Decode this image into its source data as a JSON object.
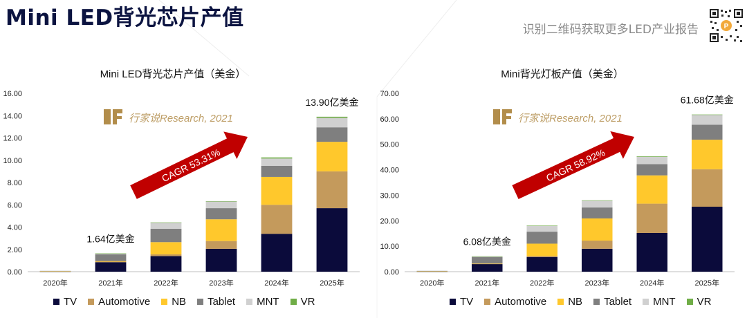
{
  "page": {
    "title": "Mini LED背光芯片产值",
    "subtitle": "识别二维码获取更多LED产业报告",
    "watermark": "行家说Research, 2021"
  },
  "colors": {
    "TV": "#0b0b3b",
    "Automotive": "#c49a5c",
    "NB": "#ffc82c",
    "Tablet": "#7f7f7f",
    "MNT": "#d0d0d0",
    "VR": "#70ad47",
    "arrow": "#c00000",
    "title": "#0b1340"
  },
  "chart_data": [
    {
      "type": "bar",
      "stacked": true,
      "title": "Mini LED背光芯片产值（美金）",
      "categories": [
        "2020年",
        "2021年",
        "2022年",
        "2023年",
        "2024年",
        "2025年"
      ],
      "ylim": [
        0,
        16
      ],
      "yticks": [
        "0.00",
        "2.00",
        "4.00",
        "6.00",
        "8.00",
        "10.00",
        "12.00",
        "14.00",
        "16.00"
      ],
      "grid": false,
      "legend_position": "bottom",
      "series": [
        {
          "name": "TV",
          "values": [
            0.02,
            0.85,
            1.4,
            2.05,
            3.4,
            5.7
          ]
        },
        {
          "name": "Automotive",
          "values": [
            0.0,
            0.05,
            0.15,
            0.7,
            2.6,
            3.3
          ]
        },
        {
          "name": "NB",
          "values": [
            0.02,
            0.05,
            1.1,
            1.95,
            2.5,
            2.65
          ]
        },
        {
          "name": "Tablet",
          "values": [
            0.03,
            0.6,
            1.2,
            1.0,
            1.0,
            1.3
          ]
        },
        {
          "name": "MNT",
          "values": [
            0.01,
            0.08,
            0.55,
            0.6,
            0.65,
            0.85
          ]
        },
        {
          "name": "VR",
          "values": [
            0.0,
            0.01,
            0.02,
            0.03,
            0.1,
            0.1
          ]
        }
      ],
      "annotations": [
        {
          "text": "1.64亿美金",
          "category": "2021年"
        },
        {
          "text": "13.90亿美金",
          "category": "2025年"
        },
        {
          "text": "CAGR 53.31%",
          "type": "arrow"
        }
      ]
    },
    {
      "type": "bar",
      "stacked": true,
      "title": "Mini背光灯板产值（美金）",
      "categories": [
        "2020年",
        "2021年",
        "2022年",
        "2023年",
        "2024年",
        "2025年"
      ],
      "ylim": [
        0,
        70
      ],
      "yticks": [
        "0.00",
        "10.00",
        "20.00",
        "30.00",
        "40.00",
        "50.00",
        "60.00",
        "70.00"
      ],
      "grid": false,
      "legend_position": "bottom",
      "series": [
        {
          "name": "TV",
          "values": [
            0.1,
            3.0,
            5.7,
            9.0,
            15.2,
            25.5
          ]
        },
        {
          "name": "Automotive",
          "values": [
            0.0,
            0.1,
            0.5,
            3.2,
            11.5,
            14.7
          ]
        },
        {
          "name": "NB",
          "values": [
            0.1,
            0.1,
            4.8,
            8.7,
            11.1,
            11.6
          ]
        },
        {
          "name": "Tablet",
          "values": [
            0.15,
            2.5,
            4.7,
            4.3,
            4.4,
            5.9
          ]
        },
        {
          "name": "MNT",
          "values": [
            0.05,
            0.35,
            2.3,
            2.7,
            2.9,
            3.9
          ]
        },
        {
          "name": "VR",
          "values": [
            0.0,
            0.03,
            0.1,
            0.1,
            0.2,
            0.08
          ]
        }
      ],
      "annotations": [
        {
          "text": "6.08亿美金",
          "category": "2021年"
        },
        {
          "text": "61.68亿美金",
          "category": "2025年"
        },
        {
          "text": "CAGR 58.92%",
          "type": "arrow"
        }
      ]
    }
  ]
}
